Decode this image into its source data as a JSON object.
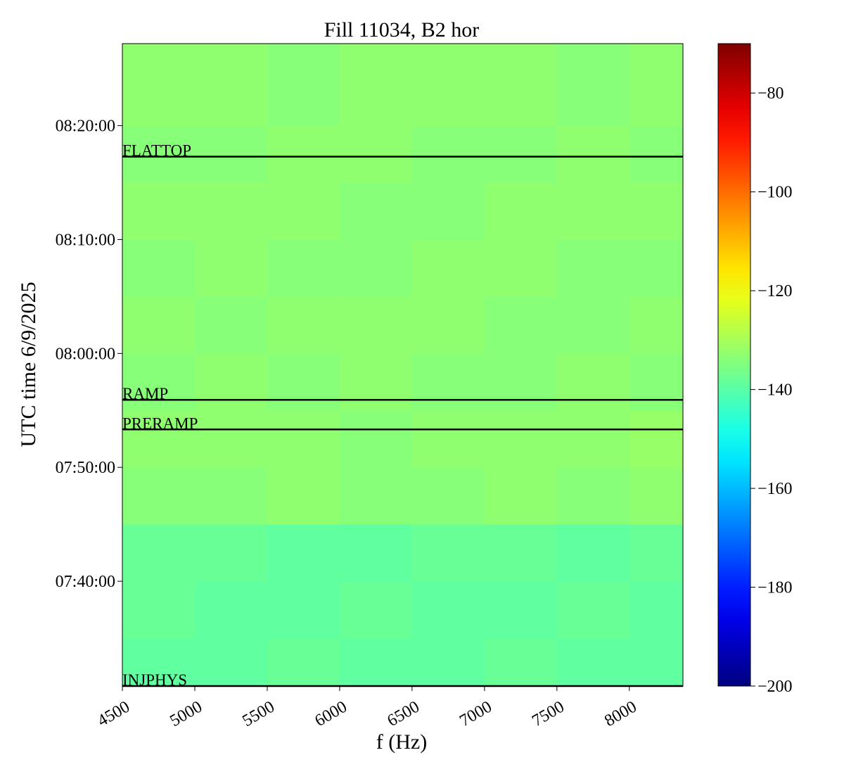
{
  "chart_data": {
    "type": "heatmap",
    "title": "Fill 11034, B2 hor",
    "xlabel": "f (Hz)",
    "ylabel": "UTC time 6/9/2025",
    "xlim": [
      4500,
      8370
    ],
    "xticks": [
      4500,
      5000,
      5500,
      6000,
      6500,
      7000,
      7500,
      8000
    ],
    "ylim": [
      450.8,
      507.2
    ],
    "yticks": [
      {
        "value": 460,
        "label": "07:40:00"
      },
      {
        "value": 470,
        "label": "07:50:00"
      },
      {
        "value": 480,
        "label": "08:00:00"
      },
      {
        "value": 490,
        "label": "08:10:00"
      },
      {
        "value": 500,
        "label": "08:20:00"
      }
    ],
    "colormap": "jet",
    "clim": [
      -200,
      -70
    ],
    "cticks": [
      {
        "value": -200,
        "label": "−200"
      },
      {
        "value": -180,
        "label": "−180"
      },
      {
        "value": -160,
        "label": "−160"
      },
      {
        "value": -140,
        "label": "−140"
      },
      {
        "value": -120,
        "label": "−120"
      },
      {
        "value": -100,
        "label": "−100"
      },
      {
        "value": -80,
        "label": "−80"
      }
    ],
    "xbins": [
      4500,
      5000,
      5500,
      6000,
      6500,
      7000,
      7500,
      8000,
      8370
    ],
    "ybins": [
      450.8,
      455,
      460,
      465,
      470,
      475,
      480,
      485,
      490,
      495,
      500,
      507.2
    ],
    "z": [
      [
        -139,
        -139,
        -138,
        -139,
        -139,
        -138,
        -139,
        -139
      ],
      [
        -138,
        -139,
        -139,
        -138,
        -139,
        -139,
        -138,
        -139
      ],
      [
        -138,
        -138,
        -139,
        -139,
        -138,
        -138,
        -139,
        -138
      ],
      [
        -134,
        -134,
        -133,
        -134,
        -134,
        -133,
        -134,
        -133
      ],
      [
        -133,
        -133,
        -133,
        -134,
        -133,
        -133,
        -133,
        -132
      ],
      [
        -134,
        -133,
        -134,
        -133,
        -134,
        -134,
        -133,
        -134
      ],
      [
        -133,
        -134,
        -133,
        -133,
        -133,
        -134,
        -134,
        -133
      ],
      [
        -134,
        -133,
        -134,
        -134,
        -133,
        -133,
        -134,
        -134
      ],
      [
        -133,
        -133,
        -133,
        -134,
        -134,
        -133,
        -133,
        -133
      ],
      [
        -134,
        -134,
        -133,
        -133,
        -134,
        -134,
        -133,
        -134
      ],
      [
        -133,
        -133,
        -134,
        -133,
        -133,
        -133,
        -134,
        -133
      ]
    ],
    "annotations": [
      {
        "label": "FLATTOP",
        "y": 497.28
      },
      {
        "label": "RAMP",
        "y": 475.93
      },
      {
        "label": "PRERAMP",
        "y": 473.33
      },
      {
        "label": "INJPHYS",
        "y": 450.8
      }
    ]
  }
}
